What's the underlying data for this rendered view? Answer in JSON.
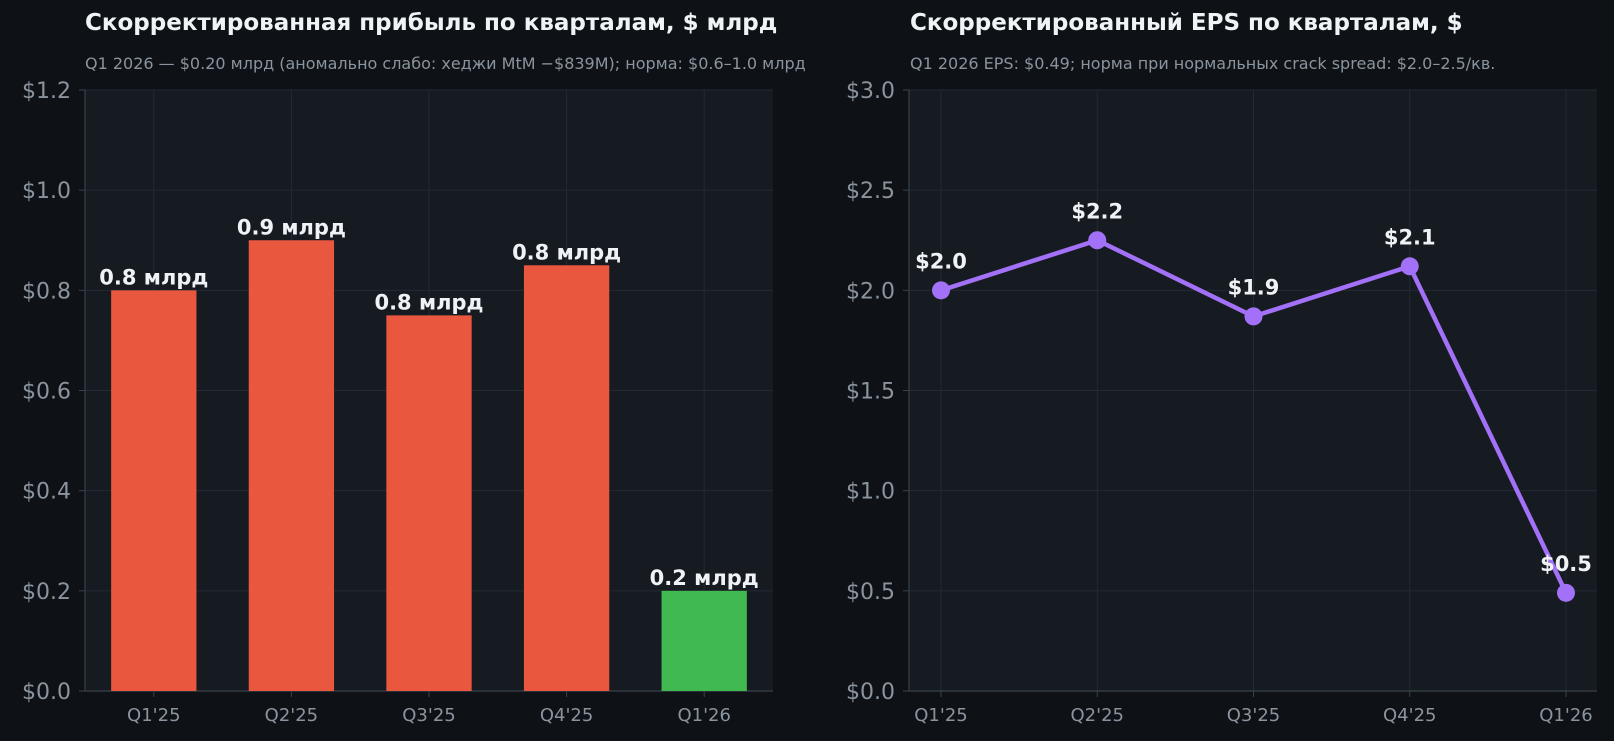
{
  "colors": {
    "page_bg": "#0e1217",
    "plot_bg": "#161b22",
    "grid": "#232a33",
    "axis": "#3a414a",
    "tick_text": "#8b949e",
    "label_text": "#f0f3f6",
    "bar_default": "#e9573f",
    "bar_highlight": "#3fb950",
    "line": "#a371f7"
  },
  "chart_data": [
    {
      "type": "bar",
      "title": "Скорректированная прибыль по кварталам, $ млрд",
      "subtitle": "Q1 2026 — $0.20 млрд (аномально слабо: хеджи MtM −$839M); норма: $0.6–1.0 млрд",
      "categories": [
        "Q1'25",
        "Q2'25",
        "Q3'25",
        "Q4'25",
        "Q1'26"
      ],
      "values": [
        0.8,
        0.9,
        0.75,
        0.85,
        0.2
      ],
      "data_labels": [
        "0.8 млрд",
        "0.9 млрд",
        "0.8 млрд",
        "0.8 млрд",
        "0.2 млрд"
      ],
      "highlight_index": 4,
      "ylim": [
        0,
        1.2
      ],
      "yticks": [
        0,
        0.2,
        0.4,
        0.6,
        0.8,
        1.0,
        1.2
      ],
      "ytick_labels": [
        "$0.0",
        "$0.2",
        "$0.4",
        "$0.6",
        "$0.8",
        "$1.0",
        "$1.2"
      ],
      "xlabel": "",
      "ylabel": "",
      "grid": true
    },
    {
      "type": "line",
      "title": "Скорректированный EPS по кварталам, $",
      "subtitle": "Q1 2026 EPS: $0.49; норма при нормальных crack spread: $2.0–2.5/кв.",
      "categories": [
        "Q1'25",
        "Q2'25",
        "Q3'25",
        "Q4'25",
        "Q1'26"
      ],
      "values": [
        2.0,
        2.25,
        1.87,
        2.12,
        0.49
      ],
      "data_labels": [
        "$2.0",
        "$2.2",
        "$1.9",
        "$2.1",
        "$0.5"
      ],
      "ylim": [
        0,
        3.0
      ],
      "yticks": [
        0,
        0.5,
        1.0,
        1.5,
        2.0,
        2.5,
        3.0
      ],
      "ytick_labels": [
        "$0.0",
        "$0.5",
        "$1.0",
        "$1.5",
        "$2.0",
        "$2.5",
        "$3.0"
      ],
      "xlabel": "",
      "ylabel": "",
      "grid": true
    }
  ]
}
